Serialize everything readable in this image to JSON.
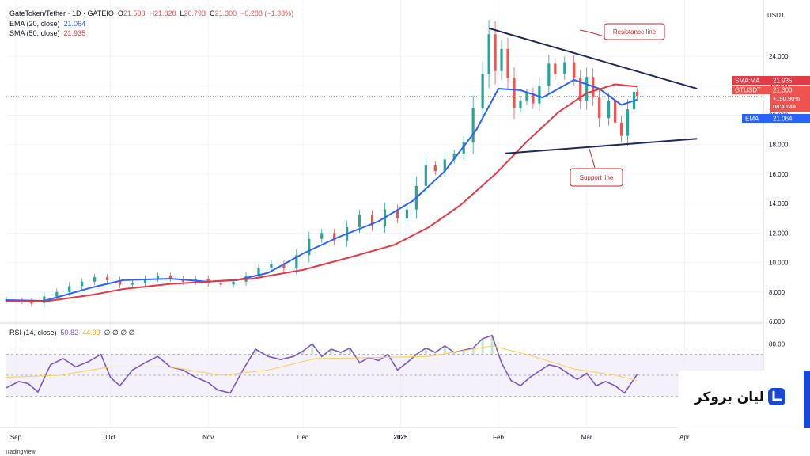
{
  "legend": {
    "symbol": "GateToken/Tether · 1D · GATEIO",
    "o_label": "O",
    "o": "21.588",
    "h_label": "H",
    "h": "21.828",
    "l_label": "L",
    "l": "20.793",
    "c_label": "C",
    "c": "21.300",
    "chg": "−0.288 (−1.33%)",
    "ema_label": "EMA (20, close)",
    "ema": "21.064",
    "sma_label": "SMA (50, close)",
    "sma": "21.935",
    "rsi_label": "RSI (14, close)",
    "rsi": "50.82",
    "rsi_ma": "44.99",
    "rsi_empty": "∅ ∅ ∅ ∅"
  },
  "badges": {
    "currency": "USDT",
    "sma_tag": "SMA:MA",
    "sma_value": "21.935",
    "price_tag": "GTUSDT",
    "price_value": "21.300",
    "price_change": "+190.90%",
    "countdown": "08:40:44",
    "ema_tag": "EMA",
    "ema_value": "21.064"
  },
  "annotations": {
    "resistance": "Resistance line",
    "support": "Support line"
  },
  "brand": {
    "name": "لیان بروکر"
  },
  "footer": {
    "watermark": "TradingView"
  },
  "colors": {
    "up": "#26a69a",
    "down": "#ef5350",
    "ema": "#2962ff",
    "sma": "#e53945",
    "rsi": "#7e57c2",
    "rsi_ma": "#f6d35b",
    "trend": "#1e2a5a",
    "brand": "#1848d8"
  },
  "chart_data": [
    {
      "type": "candlestick",
      "title": "GateToken/Tether · 1D · GATEIO",
      "ylim": [
        6,
        27.5
      ],
      "y_ticks": [
        "6.000",
        "8.000",
        "10.000",
        "12.000",
        "14.000",
        "16.000",
        "18.000",
        "20.000",
        "22.000",
        "24.000"
      ],
      "x_ticks": [
        "Sep",
        "Oct",
        "Nov",
        "Dec",
        "2025",
        "Feb",
        "Mar",
        "Apr"
      ],
      "x_tick_dates": [
        "2024-09-01",
        "2024-10-01",
        "2024-11-01",
        "2024-12-01",
        "2025-01-01",
        "2025-02-01",
        "2025-03-01",
        "2025-04-01"
      ],
      "x_range": [
        "2024-08-29",
        "2025-04-26"
      ],
      "grid": true,
      "series": [
        {
          "name": "EMA (20, close)",
          "points": [
            [
              "2024-08-29",
              7.45
            ],
            [
              "2024-09-10",
              7.4
            ],
            [
              "2024-09-25",
              8.3
            ],
            [
              "2024-10-05",
              8.8
            ],
            [
              "2024-10-20",
              8.9
            ],
            [
              "2024-11-01",
              8.7
            ],
            [
              "2024-11-10",
              8.8
            ],
            [
              "2024-11-20",
              9.3
            ],
            [
              "2024-12-01",
              10.6
            ],
            [
              "2024-12-12",
              11.7
            ],
            [
              "2024-12-25",
              12.8
            ],
            [
              "2025-01-05",
              14.2
            ],
            [
              "2025-01-15",
              16.2
            ],
            [
              "2025-01-25",
              19.0
            ],
            [
              "2025-02-01",
              21.8
            ],
            [
              "2025-02-08",
              21.7
            ],
            [
              "2025-02-15",
              21.2
            ],
            [
              "2025-02-25",
              22.4
            ],
            [
              "2025-03-05",
              21.8
            ],
            [
              "2025-03-12",
              20.7
            ],
            [
              "2025-03-17",
              21.06
            ]
          ]
        },
        {
          "name": "SMA (50, close)",
          "points": [
            [
              "2024-08-29",
              7.35
            ],
            [
              "2024-09-10",
              7.35
            ],
            [
              "2024-09-25",
              7.8
            ],
            [
              "2024-10-05",
              8.2
            ],
            [
              "2024-10-20",
              8.55
            ],
            [
              "2024-11-01",
              8.7
            ],
            [
              "2024-11-15",
              8.9
            ],
            [
              "2024-12-01",
              9.5
            ],
            [
              "2024-12-15",
              10.3
            ],
            [
              "2024-12-30",
              11.2
            ],
            [
              "2025-01-10",
              12.4
            ],
            [
              "2025-01-20",
              13.9
            ],
            [
              "2025-01-31",
              16.0
            ],
            [
              "2025-02-10",
              18.2
            ],
            [
              "2025-02-20",
              20.2
            ],
            [
              "2025-03-01",
              21.5
            ],
            [
              "2025-03-10",
              22.1
            ],
            [
              "2025-03-17",
              21.94
            ]
          ]
        }
      ],
      "candles": [
        [
          "2024-08-29",
          7.4,
          7.5
        ],
        [
          "2024-09-03",
          7.45,
          7.35
        ],
        [
          "2024-09-06",
          7.35,
          7.2
        ],
        [
          "2024-09-10",
          7.25,
          7.7
        ],
        [
          "2024-09-14",
          7.7,
          8.0
        ],
        [
          "2024-09-18",
          8.0,
          8.4
        ],
        [
          "2024-09-22",
          8.4,
          8.7
        ],
        [
          "2024-09-26",
          8.7,
          9.0
        ],
        [
          "2024-09-30",
          9.0,
          8.8
        ],
        [
          "2024-10-04",
          8.8,
          8.5
        ],
        [
          "2024-10-08",
          8.5,
          8.6
        ],
        [
          "2024-10-12",
          8.6,
          8.9
        ],
        [
          "2024-10-16",
          8.9,
          9.1
        ],
        [
          "2024-10-20",
          9.1,
          8.9
        ],
        [
          "2024-10-24",
          8.9,
          8.7
        ],
        [
          "2024-10-28",
          8.7,
          8.9
        ],
        [
          "2024-11-01",
          8.9,
          8.6
        ],
        [
          "2024-11-05",
          8.6,
          8.5
        ],
        [
          "2024-11-09",
          8.5,
          8.7
        ],
        [
          "2024-11-13",
          8.7,
          9.1
        ],
        [
          "2024-11-17",
          9.1,
          9.6
        ],
        [
          "2024-11-21",
          9.6,
          9.9
        ],
        [
          "2024-11-25",
          9.9,
          9.6
        ],
        [
          "2024-11-29",
          9.6,
          10.5
        ],
        [
          "2024-12-03",
          10.5,
          11.6
        ],
        [
          "2024-12-07",
          11.6,
          12.0
        ],
        [
          "2024-12-11",
          12.0,
          11.5
        ],
        [
          "2024-12-15",
          11.5,
          12.4
        ],
        [
          "2024-12-19",
          12.4,
          13.2
        ],
        [
          "2024-12-23",
          13.2,
          12.5
        ],
        [
          "2024-12-27",
          12.5,
          13.6
        ],
        [
          "2024-12-31",
          13.6,
          13.0
        ],
        [
          "2025-01-03",
          13.0,
          13.6
        ],
        [
          "2025-01-06",
          13.6,
          15.2
        ],
        [
          "2025-01-09",
          15.2,
          16.6
        ],
        [
          "2025-01-12",
          16.6,
          16.2
        ],
        [
          "2025-01-15",
          16.2,
          17.0
        ],
        [
          "2025-01-18",
          17.0,
          17.4
        ],
        [
          "2025-01-21",
          17.4,
          18.2
        ],
        [
          "2025-01-24",
          18.2,
          20.5
        ],
        [
          "2025-01-27",
          20.5,
          22.8
        ],
        [
          "2025-01-29",
          22.8,
          25.5
        ],
        [
          "2025-01-31",
          25.5,
          23.0
        ],
        [
          "2025-02-02",
          23.0,
          24.5
        ],
        [
          "2025-02-04",
          24.5,
          22.5
        ],
        [
          "2025-02-06",
          22.5,
          20.5
        ],
        [
          "2025-02-08",
          20.5,
          21.0
        ],
        [
          "2025-02-10",
          21.0,
          21.5
        ],
        [
          "2025-02-12",
          21.5,
          20.8
        ],
        [
          "2025-02-14",
          20.8,
          22.0
        ],
        [
          "2025-02-17",
          22.0,
          23.5
        ],
        [
          "2025-02-19",
          23.5,
          22.8
        ],
        [
          "2025-02-22",
          22.8,
          23.6
        ],
        [
          "2025-02-25",
          23.6,
          22.5
        ],
        [
          "2025-02-27",
          22.5,
          21.0
        ],
        [
          "2025-03-01",
          21.0,
          22.6
        ],
        [
          "2025-03-03",
          22.6,
          21.2
        ],
        [
          "2025-03-05",
          21.2,
          19.8
        ],
        [
          "2025-03-08",
          19.8,
          21.0
        ],
        [
          "2025-03-10",
          21.0,
          19.5
        ],
        [
          "2025-03-12",
          19.5,
          18.6
        ],
        [
          "2025-03-14",
          18.6,
          20.4
        ],
        [
          "2025-03-16",
          20.4,
          21.59
        ],
        [
          "2025-03-17",
          21.59,
          21.3
        ]
      ],
      "trendlines": [
        {
          "name": "Resistance line",
          "from": [
            "2025-01-29",
            25.9
          ],
          "to": [
            "2025-04-05",
            21.8
          ]
        },
        {
          "name": "Support line",
          "from": [
            "2025-02-03",
            17.4
          ],
          "to": [
            "2025-04-05",
            18.4
          ]
        }
      ]
    },
    {
      "type": "line",
      "title": "RSI (14, close)",
      "ylim": [
        0,
        100
      ],
      "y_ticks": [
        "80.00"
      ],
      "band": [
        30,
        70
      ],
      "series": [
        {
          "name": "RSI (14, close)",
          "points": [
            [
              "2024-08-29",
              38
            ],
            [
              "2024-09-02",
              44
            ],
            [
              "2024-09-05",
              42
            ],
            [
              "2024-09-08",
              34
            ],
            [
              "2024-09-12",
              60
            ],
            [
              "2024-09-16",
              66
            ],
            [
              "2024-09-20",
              58
            ],
            [
              "2024-09-24",
              63
            ],
            [
              "2024-09-28",
              70
            ],
            [
              "2024-10-01",
              48
            ],
            [
              "2024-10-04",
              40
            ],
            [
              "2024-10-08",
              55
            ],
            [
              "2024-10-12",
              62
            ],
            [
              "2024-10-16",
              68
            ],
            [
              "2024-10-20",
              58
            ],
            [
              "2024-10-24",
              55
            ],
            [
              "2024-10-28",
              48
            ],
            [
              "2024-11-01",
              43
            ],
            [
              "2024-11-04",
              36
            ],
            [
              "2024-11-08",
              33
            ],
            [
              "2024-11-12",
              55
            ],
            [
              "2024-11-16",
              75
            ],
            [
              "2024-11-20",
              68
            ],
            [
              "2024-11-24",
              65
            ],
            [
              "2024-11-28",
              68
            ],
            [
              "2024-12-01",
              73
            ],
            [
              "2024-12-04",
              80
            ],
            [
              "2024-12-07",
              68
            ],
            [
              "2024-12-10",
              75
            ],
            [
              "2024-12-13",
              72
            ],
            [
              "2024-12-16",
              76
            ],
            [
              "2024-12-19",
              62
            ],
            [
              "2024-12-22",
              67
            ],
            [
              "2024-12-25",
              64
            ],
            [
              "2024-12-28",
              70
            ],
            [
              "2024-12-31",
              55
            ],
            [
              "2025-01-03",
              62
            ],
            [
              "2025-01-06",
              70
            ],
            [
              "2025-01-09",
              76
            ],
            [
              "2025-01-12",
              72
            ],
            [
              "2025-01-15",
              78
            ],
            [
              "2025-01-18",
              72
            ],
            [
              "2025-01-21",
              74
            ],
            [
              "2025-01-24",
              76
            ],
            [
              "2025-01-27",
              85
            ],
            [
              "2025-01-30",
              88
            ],
            [
              "2025-02-02",
              62
            ],
            [
              "2025-02-05",
              45
            ],
            [
              "2025-02-08",
              40
            ],
            [
              "2025-02-11",
              48
            ],
            [
              "2025-02-14",
              54
            ],
            [
              "2025-02-17",
              60
            ],
            [
              "2025-02-20",
              58
            ],
            [
              "2025-02-23",
              52
            ],
            [
              "2025-02-26",
              46
            ],
            [
              "2025-03-01",
              52
            ],
            [
              "2025-03-04",
              40
            ],
            [
              "2025-03-07",
              44
            ],
            [
              "2025-03-10",
              40
            ],
            [
              "2025-03-13",
              33
            ],
            [
              "2025-03-17",
              50.82
            ]
          ]
        },
        {
          "name": "MA",
          "points": [
            [
              "2024-08-29",
              48
            ],
            [
              "2024-09-15",
              50
            ],
            [
              "2024-10-01",
              58
            ],
            [
              "2024-10-20",
              58
            ],
            [
              "2024-11-05",
              50
            ],
            [
              "2024-11-20",
              55
            ],
            [
              "2024-12-05",
              66
            ],
            [
              "2024-12-25",
              67
            ],
            [
              "2025-01-10",
              68
            ],
            [
              "2025-01-30",
              78
            ],
            [
              "2025-02-10",
              70
            ],
            [
              "2025-02-25",
              56
            ],
            [
              "2025-03-10",
              50
            ],
            [
              "2025-03-17",
              44.99
            ]
          ]
        }
      ]
    }
  ]
}
